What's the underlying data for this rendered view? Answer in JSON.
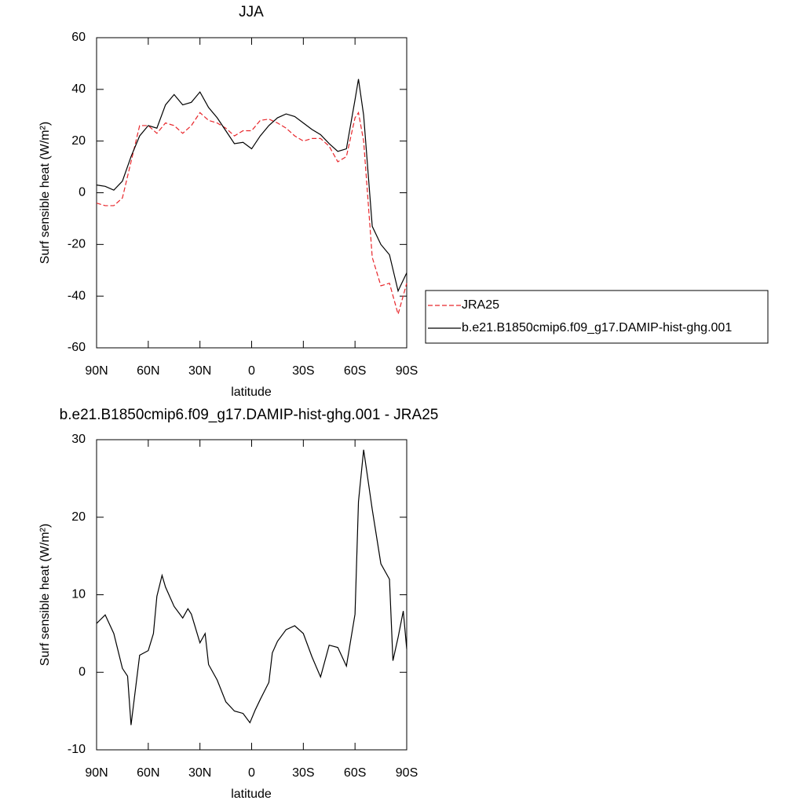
{
  "chart_data": [
    {
      "type": "line",
      "title": "JJA",
      "xlabel": "latitude",
      "ylabel": "Surf sensible heat (W/m²)",
      "x": [
        90,
        85,
        80,
        75,
        70,
        65,
        60,
        55,
        50,
        45,
        40,
        35,
        30,
        25,
        20,
        15,
        10,
        5,
        0,
        -5,
        -10,
        -15,
        -20,
        -25,
        -30,
        -35,
        -40,
        -45,
        -50,
        -55,
        -60,
        -62,
        -65,
        -70,
        -75,
        -80,
        -85,
        -90
      ],
      "series": [
        {
          "name": "JRA25",
          "color": "#e8262b",
          "style": "dashed",
          "values": [
            -4,
            -5,
            -5,
            -2,
            12,
            26,
            26,
            23,
            27,
            26,
            23,
            26,
            31,
            28,
            27,
            25,
            22,
            24,
            24,
            28,
            28.5,
            27,
            25,
            22,
            20,
            21,
            21,
            18,
            12,
            14,
            29,
            31,
            20,
            -25,
            -36,
            -35,
            -47,
            -35
          ]
        },
        {
          "name": "b.e21.B1850cmip6.f09_g17.DAMIP-hist-ghg.001",
          "color": "#000000",
          "style": "solid",
          "values": [
            3,
            2.5,
            1,
            4.5,
            14,
            22,
            26,
            25,
            34,
            38,
            34,
            35,
            39,
            33,
            29,
            24,
            19,
            19.5,
            17,
            22,
            26,
            29,
            30.5,
            29.5,
            27,
            24.5,
            22.5,
            19,
            16,
            17,
            36,
            44,
            30,
            -13,
            -20,
            -24,
            -38,
            -31
          ]
        }
      ],
      "xlim": [
        90,
        -90
      ],
      "xticks": [
        {
          "value": 90,
          "label": "90N"
        },
        {
          "value": 60,
          "label": "60N"
        },
        {
          "value": 30,
          "label": "30N"
        },
        0,
        {
          "value": -30,
          "label": "30S"
        },
        {
          "value": -60,
          "label": "60S"
        },
        {
          "value": -90,
          "label": "90S"
        }
      ],
      "ylim": [
        -60,
        60
      ],
      "yticks": [
        -60,
        -40,
        -20,
        0,
        20,
        40,
        60
      ],
      "legend": "right"
    },
    {
      "type": "line",
      "title": "b.e21.B1850cmip6.f09_g17.DAMIP-hist-ghg.001 - JRA25",
      "xlabel": "latitude",
      "ylabel": "Surf sensible heat (W/m²)",
      "x": [
        90,
        85,
        80,
        75,
        72,
        70,
        65,
        60,
        57,
        55,
        52,
        50,
        45,
        40,
        37,
        35,
        30,
        27,
        25,
        20,
        15,
        10,
        5,
        1,
        -2,
        -5,
        -10,
        -12,
        -15,
        -20,
        -25,
        -30,
        -35,
        -40,
        -45,
        -50,
        -55,
        -60,
        -62,
        -65,
        -70,
        -75,
        -80,
        -82,
        -85,
        -88,
        -90
      ],
      "series": [
        {
          "color": "#000000",
          "style": "solid",
          "values": [
            6.3,
            7.4,
            5,
            0.5,
            -0.5,
            -6.8,
            2.2,
            2.8,
            5,
            9.8,
            12.5,
            11,
            8.5,
            7,
            8.2,
            7.5,
            3.8,
            5,
            1,
            -1,
            -3.8,
            -5,
            -5.3,
            -6.5,
            -4.9,
            -3.5,
            -1.3,
            2.5,
            4,
            5.5,
            6,
            5,
            2,
            -0.6,
            3.5,
            3.2,
            0.8,
            7.5,
            22,
            28.7,
            21,
            14,
            12,
            1.5,
            4.5,
            7.9,
            3
          ]
        }
      ],
      "xlim": [
        90,
        -90
      ],
      "xticks": [
        {
          "value": 90,
          "label": "90N"
        },
        {
          "value": 60,
          "label": "60N"
        },
        {
          "value": 30,
          "label": "30N"
        },
        0,
        {
          "value": -30,
          "label": "30S"
        },
        {
          "value": -60,
          "label": "60S"
        },
        {
          "value": -90,
          "label": "90S"
        }
      ],
      "ylim": [
        -10,
        30
      ],
      "yticks": [
        -10,
        0,
        10,
        20,
        30
      ]
    }
  ]
}
